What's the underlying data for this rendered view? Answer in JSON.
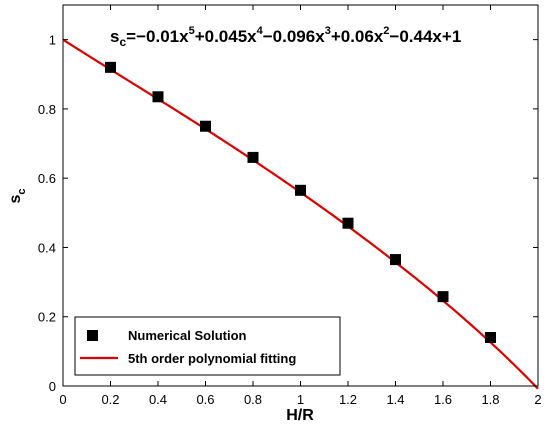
{
  "chart_data": {
    "type": "scatter",
    "title": "",
    "xlabel": "H/R",
    "ylabel": "s",
    "ylabel_sub": "c",
    "xlim": [
      0,
      2
    ],
    "ylim": [
      0,
      1.1
    ],
    "xticks": [
      "0",
      "0.2",
      "0.4",
      "0.6",
      "0.8",
      "1",
      "1.2",
      "1.4",
      "1.6",
      "1.8",
      "2"
    ],
    "yticks": [
      "0",
      "0.2",
      "0.4",
      "0.6",
      "0.8",
      "1"
    ],
    "grid": false,
    "legend_position": "bottom-left",
    "annotation": {
      "lhs": "s",
      "lhs_sub": "c",
      "terms": [
        {
          "text": "=−0.01x"
        },
        {
          "sup": "5"
        },
        {
          "text": "+0.045x"
        },
        {
          "sup": "4"
        },
        {
          "text": "−0.096x"
        },
        {
          "sup": "3"
        },
        {
          "text": "+0.06x"
        },
        {
          "sup": "2"
        },
        {
          "text": "−0.44x+1"
        }
      ]
    },
    "series": [
      {
        "name": "Numerical Solution",
        "kind": "scatter",
        "marker": "square",
        "color": "#000000",
        "x": [
          0.2,
          0.4,
          0.6,
          0.8,
          1.0,
          1.2,
          1.4,
          1.6,
          1.8
        ],
        "y": [
          0.92,
          0.835,
          0.75,
          0.66,
          0.565,
          0.47,
          0.365,
          0.258,
          0.14
        ]
      },
      {
        "name": "5th order polynomial fitting",
        "kind": "line",
        "color": "#e00000",
        "coefficients": [
          -0.01,
          0.045,
          -0.096,
          0.06,
          -0.44,
          1
        ],
        "x_range": [
          0,
          2
        ]
      }
    ]
  }
}
